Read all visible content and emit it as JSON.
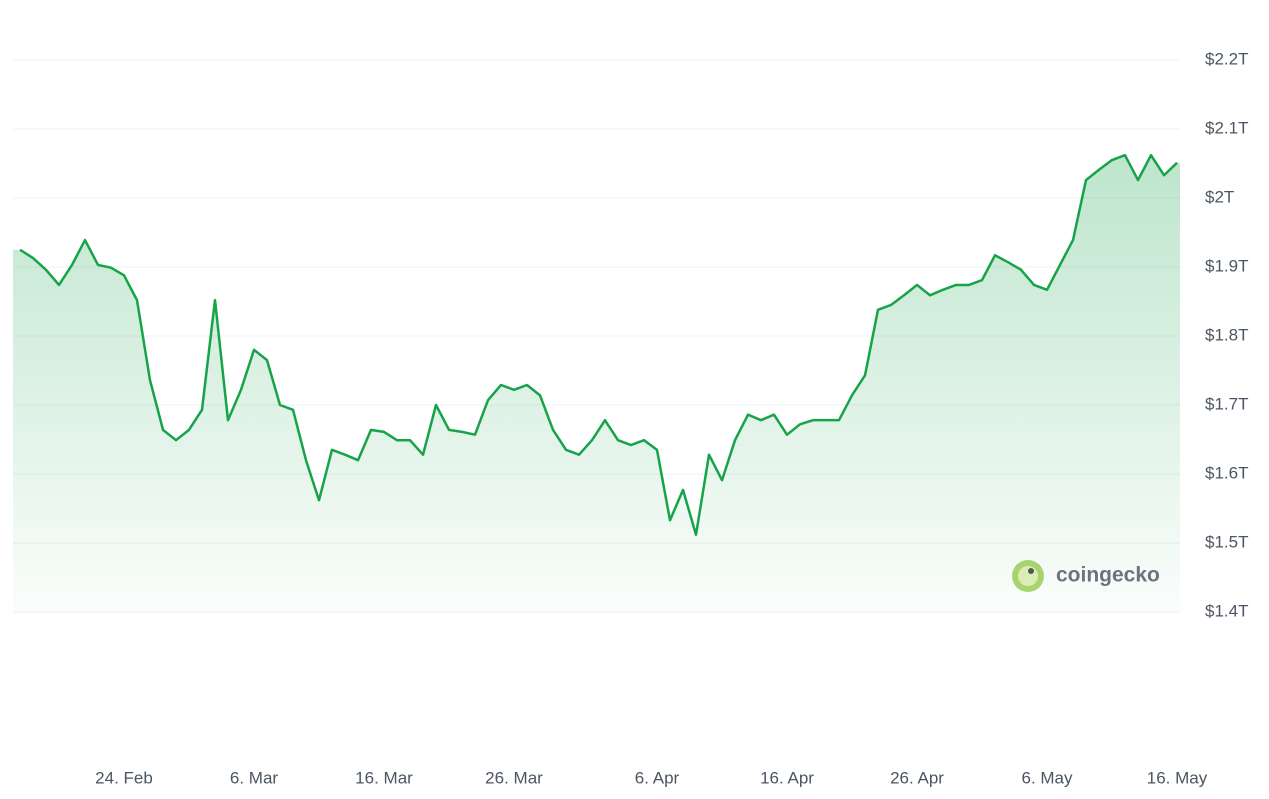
{
  "chart_data": {
    "type": "line",
    "watermark": "coingecko",
    "categories": [
      null,
      null,
      null,
      null,
      null,
      null,
      null,
      null,
      "24. Feb",
      null,
      null,
      null,
      null,
      null,
      null,
      null,
      null,
      null,
      "6. Mar",
      null,
      null,
      null,
      null,
      null,
      null,
      null,
      null,
      null,
      "16. Mar",
      null,
      null,
      null,
      null,
      null,
      null,
      null,
      null,
      null,
      "26. Mar",
      null,
      null,
      null,
      null,
      null,
      null,
      null,
      null,
      null,
      null,
      "6. Apr",
      null,
      null,
      null,
      null,
      null,
      null,
      null,
      null,
      null,
      "16. Apr",
      null,
      null,
      null,
      null,
      null,
      null,
      null,
      null,
      null,
      "26. Apr",
      null,
      null,
      null,
      null,
      null,
      null,
      null,
      null,
      null,
      "6. May",
      null,
      null,
      null,
      null,
      null,
      null,
      null,
      null,
      null,
      "16. May"
    ],
    "values": [
      1.925,
      1.913,
      1.896,
      1.874,
      1.903,
      1.939,
      1.903,
      1.899,
      1.888,
      1.852,
      1.736,
      1.664,
      1.649,
      1.664,
      1.693,
      1.852,
      1.678,
      1.722,
      1.78,
      1.765,
      1.7,
      1.693,
      1.62,
      1.562,
      1.635,
      1.628,
      1.62,
      1.664,
      1.661,
      1.649,
      1.649,
      1.628,
      1.7,
      1.664,
      1.661,
      1.657,
      1.707,
      1.729,
      1.722,
      1.729,
      1.714,
      1.664,
      1.635,
      1.628,
      1.649,
      1.678,
      1.649,
      1.642,
      1.649,
      1.635,
      1.533,
      1.577,
      1.512,
      1.628,
      1.591,
      1.649,
      1.686,
      1.678,
      1.686,
      1.657,
      1.672,
      1.678,
      1.678,
      1.678,
      1.714,
      1.743,
      1.838,
      1.845,
      1.859,
      1.874,
      1.859,
      1.867,
      1.874,
      1.874,
      1.881,
      1.917,
      1.907,
      1.896,
      1.874,
      1.867,
      1.903,
      1.939,
      2.026,
      2.041,
      2.055,
      2.062,
      2.026,
      2.062,
      2.033,
      2.051
    ],
    "color": "#16a34a",
    "ylim": [
      1.4,
      2.2
    ],
    "yticks": [
      {
        "value": 1.4,
        "label": "$1.4T"
      },
      {
        "value": 1.5,
        "label": "$1.5T"
      },
      {
        "value": 1.6,
        "label": "$1.6T"
      },
      {
        "value": 1.7,
        "label": "$1.7T"
      },
      {
        "value": 1.8,
        "label": "$1.8T"
      },
      {
        "value": 1.9,
        "label": "$1.9T"
      },
      {
        "value": 2,
        "label": "$2T"
      },
      {
        "value": 2.1,
        "label": "$2.1T"
      },
      {
        "value": 2.2,
        "label": "$2.2T"
      }
    ],
    "grid": true
  }
}
